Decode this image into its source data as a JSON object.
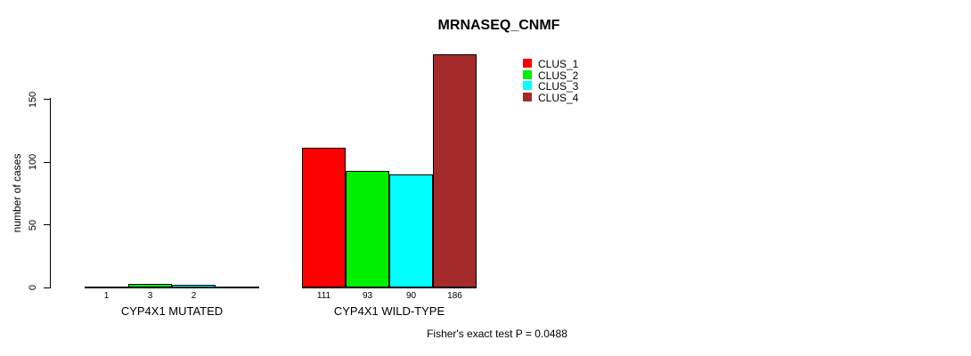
{
  "chart_data": {
    "type": "bar",
    "title": "MRNASEQ_CNMF",
    "ylabel": "number of cases",
    "yticks": [
      0,
      50,
      100,
      150
    ],
    "ylim": [
      0,
      186
    ],
    "grid": false,
    "legend_position": "top-right",
    "categories": [
      "CYP4X1 MUTATED",
      "CYP4X1 WILD-TYPE"
    ],
    "series": [
      {
        "name": "CLUS_1",
        "color": "#ff0000",
        "values": [
          1,
          111
        ]
      },
      {
        "name": "CLUS_2",
        "color": "#00ee00",
        "values": [
          3,
          93
        ]
      },
      {
        "name": "CLUS_3",
        "color": "#00ffff",
        "values": [
          2,
          90
        ]
      },
      {
        "name": "CLUS_4",
        "color": "#a52a2a",
        "values": [
          0,
          186
        ]
      }
    ],
    "groups": [
      {
        "label": "CYP4X1 MUTATED",
        "values": [
          1,
          3,
          2,
          0
        ],
        "value_labels": [
          "1",
          "3",
          "2",
          ""
        ]
      },
      {
        "label": "CYP4X1 WILD-TYPE",
        "values": [
          111,
          93,
          90,
          186
        ],
        "value_labels": [
          "111",
          "93",
          "90",
          "186"
        ]
      }
    ],
    "annotation": "Fisher's exact test P = 0.0488"
  }
}
